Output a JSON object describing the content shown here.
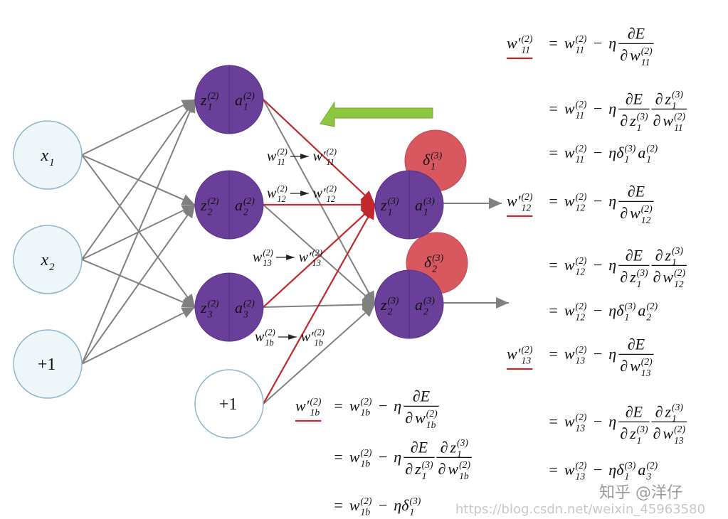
{
  "network": {
    "input_nodes": [
      {
        "b": "x",
        "sub": "1"
      },
      {
        "b": "x",
        "sub": "2"
      },
      "+1"
    ],
    "hidden_nodes": [
      {
        "z": {
          "b": "z",
          "sub": "1",
          "sup": "(2)"
        },
        "a": {
          "b": "a",
          "sub": "1",
          "sup": "(2)"
        }
      },
      {
        "z": {
          "b": "z",
          "sub": "2",
          "sup": "(2)"
        },
        "a": {
          "b": "a",
          "sub": "2",
          "sup": "(2)"
        }
      },
      {
        "z": {
          "b": "z",
          "sub": "3",
          "sup": "(2)"
        },
        "a": {
          "b": "a",
          "sub": "3",
          "sup": "(2)"
        }
      }
    ],
    "hidden_bias": "+1",
    "output_nodes": [
      {
        "z": {
          "b": "z",
          "sub": "1",
          "sup": "(3)"
        },
        "a": {
          "b": "a",
          "sub": "1",
          "sup": "(3)"
        }
      },
      {
        "z": {
          "b": "z",
          "sub": "2",
          "sup": "(3)"
        },
        "a": {
          "b": "a",
          "sub": "2",
          "sup": "(3)"
        }
      }
    ],
    "deltas": [
      {
        "b": "δ",
        "sub": "1",
        "sup": "(3)"
      },
      {
        "b": "δ",
        "sub": "2",
        "sup": "(3)"
      }
    ],
    "weight_updates": [
      {
        "from": {
          "b": "w",
          "sub": "11",
          "sup": "(2)"
        },
        "to": {
          "b": "w′",
          "sub": "11",
          "sup": "(2)"
        }
      },
      {
        "from": {
          "b": "w",
          "sub": "12",
          "sup": "(2)"
        },
        "to": {
          "b": "w′",
          "sub": "12",
          "sup": "(2)"
        }
      },
      {
        "from": {
          "b": "w",
          "sub": "13",
          "sup": "(2)"
        },
        "to": {
          "b": "w′",
          "sub": "13",
          "sup": "(2)"
        }
      },
      {
        "from": {
          "b": "w",
          "sub": "1b",
          "sup": "(2)"
        },
        "to": {
          "b": "w′",
          "sub": "1b",
          "sup": "(2)"
        }
      }
    ]
  },
  "equations": [
    {
      "lhs": {
        "b": "w′",
        "sub": "11",
        "sup": "(2)"
      },
      "lines": [
        [
          "=",
          {
            "b": "w",
            "sub": "11",
            "sup": "(2)"
          },
          "−",
          "η",
          {
            "num": [
              "∂E"
            ],
            "den": [
              "∂",
              {
                "b": "w",
                "sub": "11",
                "sup": "(2)"
              }
            ]
          }
        ],
        [
          "=",
          {
            "b": "w",
            "sub": "11",
            "sup": "(2)"
          },
          "−",
          "η",
          {
            "num": [
              "∂E"
            ],
            "den": [
              "∂",
              {
                "b": "z",
                "sub": "1",
                "sup": "(3)"
              }
            ]
          },
          {
            "num": [
              "∂",
              {
                "b": "z",
                "sub": "1",
                "sup": "(3)"
              }
            ],
            "den": [
              "∂",
              {
                "b": "w",
                "sub": "11",
                "sup": "(2)"
              }
            ]
          }
        ],
        [
          "=",
          {
            "b": "w",
            "sub": "11",
            "sup": "(2)"
          },
          "−",
          {
            "b": "ηδ",
            "sub": "1",
            "sup": "(3)"
          },
          {
            "b": "a",
            "sub": "1",
            "sup": "(2)"
          }
        ]
      ]
    },
    {
      "lhs": {
        "b": "w′",
        "sub": "12",
        "sup": "(2)"
      },
      "lines": [
        [
          "=",
          {
            "b": "w",
            "sub": "12",
            "sup": "(2)"
          },
          "−",
          "η",
          {
            "num": [
              "∂E"
            ],
            "den": [
              "∂",
              {
                "b": "w",
                "sub": "12",
                "sup": "(2)"
              }
            ]
          }
        ],
        [
          "=",
          {
            "b": "w",
            "sub": "12",
            "sup": "(2)"
          },
          "−",
          "η",
          {
            "num": [
              "∂E"
            ],
            "den": [
              "∂",
              {
                "b": "z",
                "sub": "1",
                "sup": "(3)"
              }
            ]
          },
          {
            "num": [
              "∂",
              {
                "b": "z",
                "sub": "1",
                "sup": "(3)"
              }
            ],
            "den": [
              "∂",
              {
                "b": "w",
                "sub": "12",
                "sup": "(2)"
              }
            ]
          }
        ],
        [
          "=",
          {
            "b": "w",
            "sub": "12",
            "sup": "(2)"
          },
          "−",
          {
            "b": "ηδ",
            "sub": "1",
            "sup": "(3)"
          },
          {
            "b": "a",
            "sub": "2",
            "sup": "(2)"
          }
        ]
      ]
    },
    {
      "lhs": {
        "b": "w′",
        "sub": "13",
        "sup": "(2)"
      },
      "lines": [
        [
          "=",
          {
            "b": "w",
            "sub": "13",
            "sup": "(2)"
          },
          "−",
          "η",
          {
            "num": [
              "∂E"
            ],
            "den": [
              "∂",
              {
                "b": "w",
                "sub": "13",
                "sup": "(2)"
              }
            ]
          }
        ],
        [
          "=",
          {
            "b": "w",
            "sub": "13",
            "sup": "(2)"
          },
          "−",
          "η",
          {
            "num": [
              "∂E"
            ],
            "den": [
              "∂",
              {
                "b": "z",
                "sub": "1",
                "sup": "(3)"
              }
            ]
          },
          {
            "num": [
              "∂",
              {
                "b": "z",
                "sub": "1",
                "sup": "(3)"
              }
            ],
            "den": [
              "∂",
              {
                "b": "w",
                "sub": "13",
                "sup": "(2)"
              }
            ]
          }
        ],
        [
          "=",
          {
            "b": "w",
            "sub": "13",
            "sup": "(2)"
          },
          "−",
          {
            "b": "ηδ",
            "sub": "1",
            "sup": "(3)"
          },
          {
            "b": "a",
            "sub": "3",
            "sup": "(2)"
          }
        ]
      ]
    },
    {
      "lhs": {
        "b": "w′",
        "sub": "1b",
        "sup": "(2)"
      },
      "lines": [
        [
          "=",
          {
            "b": "w",
            "sub": "1b",
            "sup": "(2)"
          },
          "−",
          "η",
          {
            "num": [
              "∂E"
            ],
            "den": [
              "∂",
              {
                "b": "w",
                "sub": "1b",
                "sup": "(2)"
              }
            ]
          }
        ],
        [
          "=",
          {
            "b": "w",
            "sub": "1b",
            "sup": "(2)"
          },
          "−",
          "η",
          {
            "num": [
              "∂E"
            ],
            "den": [
              "∂",
              {
                "b": "z",
                "sub": "1",
                "sup": "(3)"
              }
            ]
          },
          {
            "num": [
              "∂",
              {
                "b": "z",
                "sub": "1",
                "sup": "(3)"
              }
            ],
            "den": [
              "∂",
              {
                "b": "w",
                "sub": "1b",
                "sup": "(2)"
              }
            ]
          }
        ],
        [
          "=",
          {
            "b": "w",
            "sub": "1b",
            "sup": "(2)"
          },
          "−",
          {
            "b": "ηδ",
            "sub": "1",
            "sup": "(3)"
          }
        ]
      ]
    }
  ],
  "watermark": {
    "brand": "知乎 @洋仔",
    "url": "https://blog.csdn.net/weixin_45963580"
  }
}
